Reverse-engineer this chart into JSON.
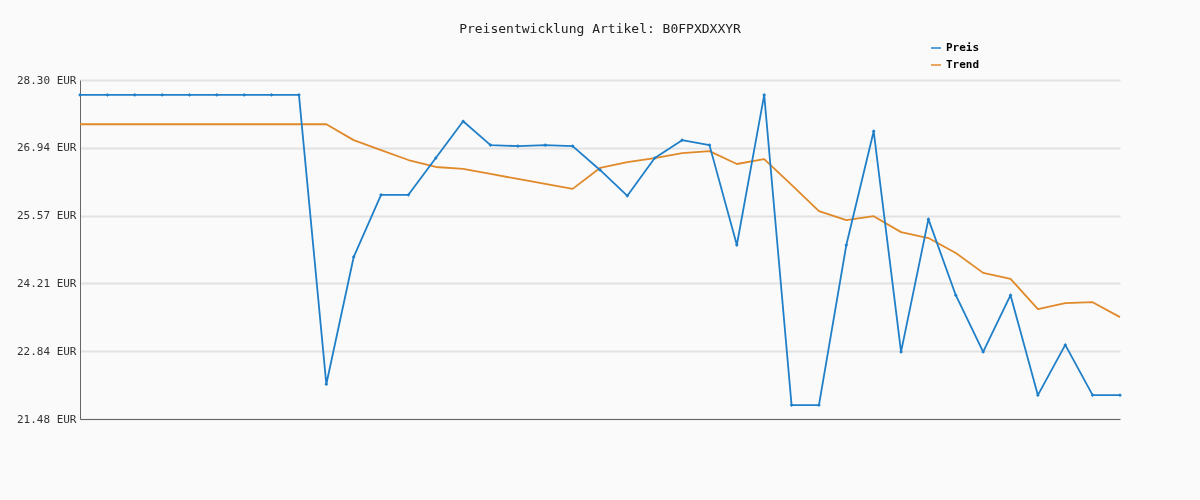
{
  "chart_data": {
    "type": "line",
    "title": "Preisentwicklung Artikel: B0FPXDXXYR",
    "categories": [
      null,
      null,
      null,
      null,
      null,
      null,
      null,
      null,
      null,
      null,
      null,
      null,
      null,
      null,
      null,
      null,
      null,
      null,
      null,
      null,
      null,
      null,
      null,
      null,
      null,
      null,
      null,
      null,
      null,
      null,
      null,
      null,
      null,
      null,
      null,
      null,
      null,
      null,
      null
    ],
    "ylim": [
      21.48,
      28.3
    ],
    "yticks": [
      {
        "value": 21.48,
        "label": "21.48 EUR"
      },
      {
        "value": 22.84,
        "label": "22.84 EUR"
      },
      {
        "value": 24.21,
        "label": "24.21 EUR"
      },
      {
        "value": 25.57,
        "label": "25.57 EUR"
      },
      {
        "value": 26.94,
        "label": "26.94 EUR"
      },
      {
        "value": 28.3,
        "label": "28.30 EUR"
      }
    ],
    "grid": "y",
    "legend": "top right",
    "series": [
      {
        "name": "Preis",
        "color": "#1f7fc8",
        "marker": "diamond",
        "values": [
          28.0,
          28.0,
          28.0,
          28.0,
          28.0,
          28.0,
          28.0,
          28.0,
          28.0,
          22.18,
          24.74,
          25.99,
          25.99,
          26.73,
          27.47,
          26.99,
          26.97,
          26.99,
          26.97,
          26.49,
          25.97,
          26.73,
          27.09,
          26.99,
          24.98,
          28.0,
          21.76,
          21.76,
          24.98,
          27.27,
          22.83,
          25.5,
          23.97,
          22.83,
          23.97,
          21.96,
          22.97,
          21.96,
          21.96
        ]
      },
      {
        "name": "Trend",
        "color": "#e0892a",
        "marker": "none",
        "values": [
          27.41,
          27.41,
          27.41,
          27.41,
          27.41,
          27.41,
          27.41,
          27.41,
          27.41,
          27.41,
          27.09,
          26.89,
          26.69,
          26.55,
          26.51,
          26.41,
          26.31,
          26.21,
          26.11,
          26.53,
          26.65,
          26.73,
          26.83,
          26.87,
          26.61,
          26.71,
          26.19,
          25.66,
          25.48,
          25.56,
          25.24,
          25.12,
          24.82,
          24.42,
          24.3,
          23.69,
          23.81,
          23.83,
          23.53
        ]
      }
    ]
  }
}
